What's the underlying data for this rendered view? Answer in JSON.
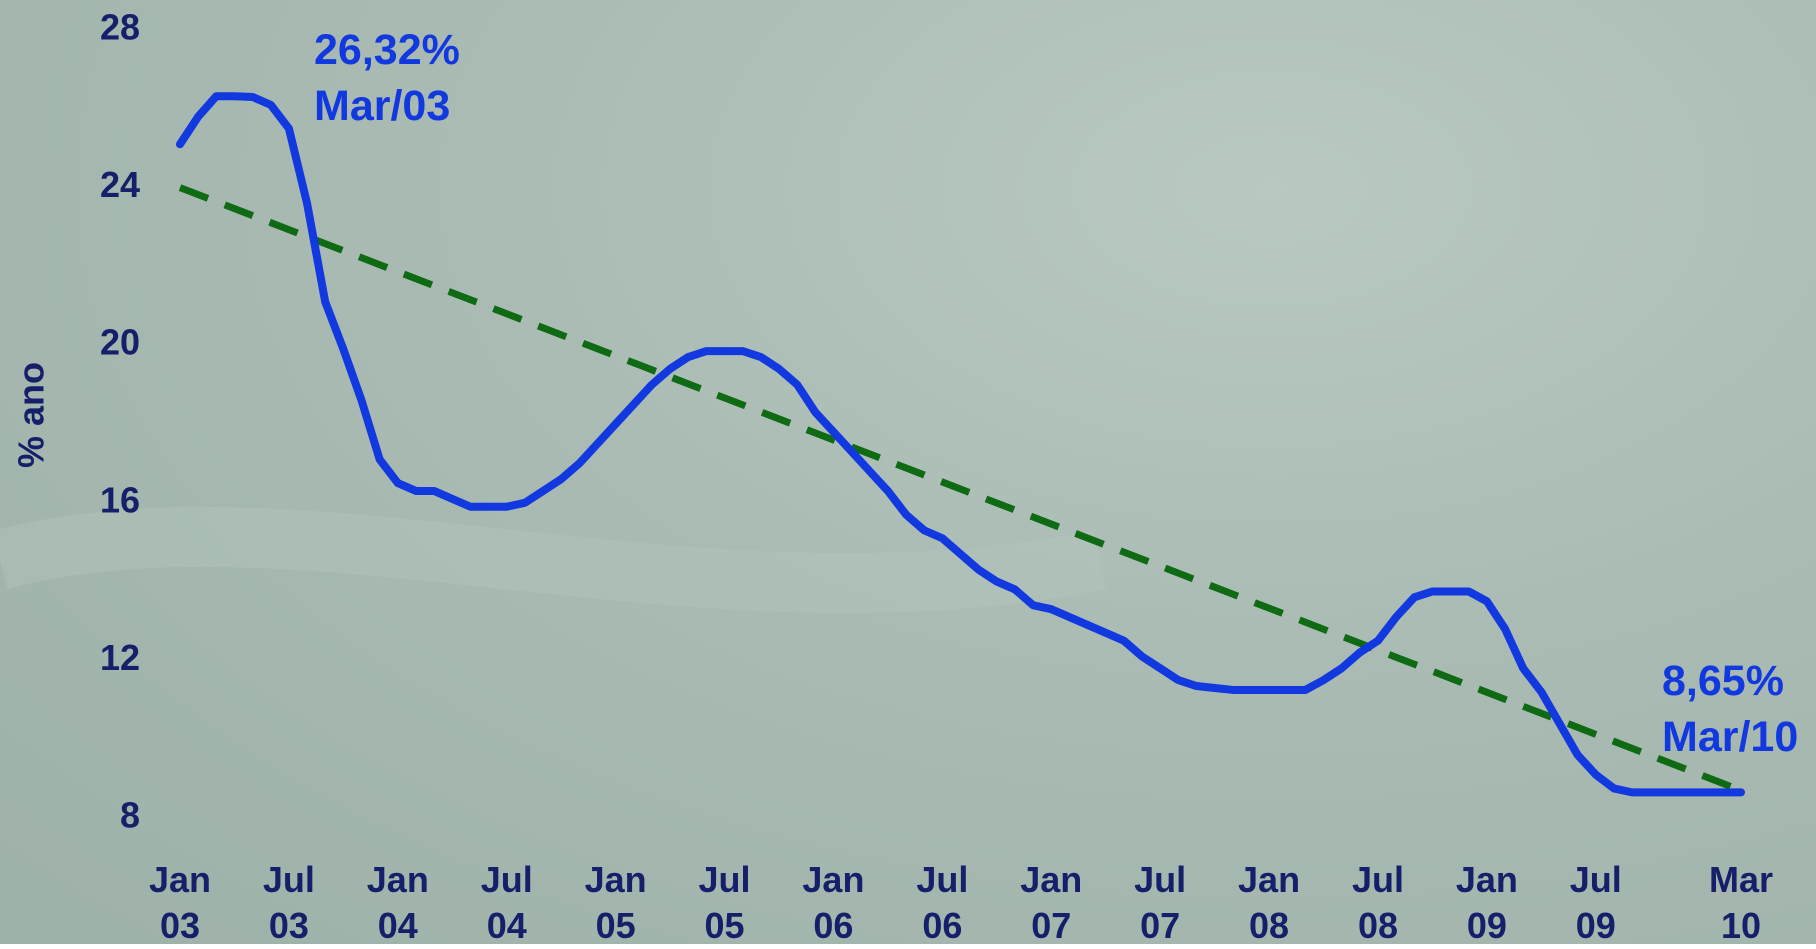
{
  "chart_data": {
    "type": "line",
    "y_label": "% ano",
    "categories": [
      "Jan 03",
      null,
      null,
      null,
      null,
      null,
      "Jul 03",
      null,
      null,
      null,
      null,
      null,
      "Jan 04",
      null,
      null,
      null,
      null,
      null,
      "Jul 04",
      null,
      null,
      null,
      null,
      null,
      "Jan 05",
      null,
      null,
      null,
      null,
      null,
      "Jul 05",
      null,
      null,
      null,
      null,
      null,
      "Jan 06",
      null,
      null,
      null,
      null,
      null,
      "Jul 06",
      null,
      null,
      null,
      null,
      null,
      "Jan 07",
      null,
      null,
      null,
      null,
      null,
      "Jul 07",
      null,
      null,
      null,
      null,
      null,
      "Jan 08",
      null,
      null,
      null,
      null,
      null,
      "Jul 08",
      null,
      null,
      null,
      null,
      null,
      "Jan 09",
      null,
      null,
      null,
      null,
      null,
      "Jul 09",
      null,
      null,
      null,
      null,
      null,
      null,
      null,
      "Mar 10"
    ],
    "series": [
      {
        "color": "#1238e0",
        "values": [
          25.1,
          25.8,
          26.32,
          26.32,
          26.3,
          26.1,
          25.5,
          23.6,
          21.1,
          19.9,
          18.6,
          17.1,
          16.5,
          16.3,
          16.3,
          16.1,
          15.9,
          15.9,
          15.9,
          16.0,
          16.3,
          16.6,
          17.0,
          17.5,
          18.0,
          18.5,
          19.0,
          19.4,
          19.7,
          19.85,
          19.85,
          19.85,
          19.7,
          19.4,
          19.0,
          18.3,
          17.8,
          17.3,
          16.8,
          16.3,
          15.7,
          15.3,
          15.1,
          14.7,
          14.3,
          14.0,
          13.8,
          13.4,
          13.3,
          13.1,
          12.9,
          12.7,
          12.5,
          12.1,
          11.8,
          11.5,
          11.35,
          11.3,
          11.25,
          11.25,
          11.25,
          11.25,
          11.25,
          11.5,
          11.8,
          12.2,
          12.5,
          13.1,
          13.6,
          13.75,
          13.75,
          13.75,
          13.5,
          12.8,
          11.8,
          11.2,
          10.4,
          9.6,
          9.1,
          8.75,
          8.65,
          8.65,
          8.65,
          8.65,
          8.65,
          8.65,
          8.65
        ]
      }
    ],
    "trend_line": {
      "color": "#0f6a14",
      "dashed": true,
      "values": [
        24.0,
        8.7
      ]
    },
    "annotations": [
      {
        "value": "26,32%",
        "date": "Mar/03"
      },
      {
        "value": "8,65%",
        "date": "Mar/10"
      }
    ],
    "ylim": [
      8,
      28
    ],
    "yticks": [
      8,
      12,
      16,
      20,
      24,
      28
    ]
  }
}
